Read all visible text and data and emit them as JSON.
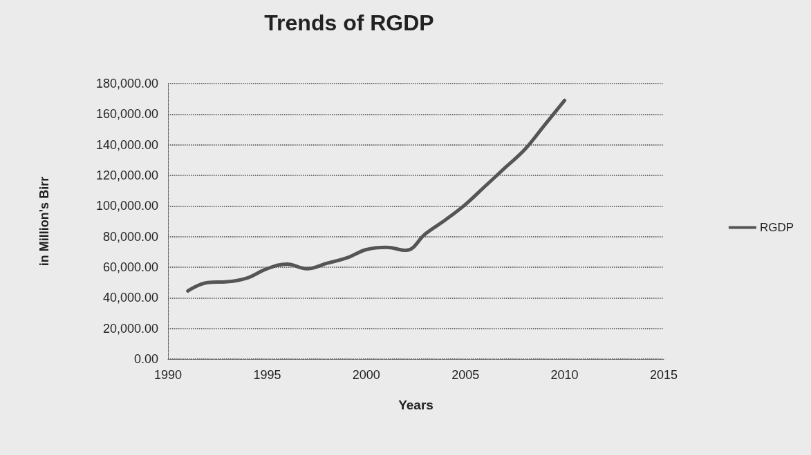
{
  "chart_data": {
    "type": "line",
    "title": "Trends of RGDP",
    "xlabel": "Years",
    "ylabel": "in Million's Birr",
    "x": [
      1991,
      1992,
      1993,
      1994,
      1995,
      1996,
      1997,
      1998,
      1999,
      2000,
      2001,
      2002,
      2003,
      2004,
      2005,
      2006,
      2007,
      2008,
      2009,
      2010
    ],
    "series": [
      {
        "name": "RGDP",
        "color": "#555555",
        "values": [
          44500,
          50000,
          50500,
          53000,
          59000,
          62000,
          59000,
          62500,
          66000,
          71500,
          73000,
          71000,
          82000,
          91000,
          101000,
          113000,
          125000,
          137000,
          153000,
          169000
        ]
      }
    ],
    "xlim": [
      1990,
      2015
    ],
    "xticks": [
      1990,
      1995,
      2000,
      2005,
      2010,
      2015
    ],
    "ylim": [
      0,
      180000
    ],
    "yticks": [
      {
        "value": 0,
        "label": "0.00"
      },
      {
        "value": 20000,
        "label": "20,000.00"
      },
      {
        "value": 40000,
        "label": "40,000.00"
      },
      {
        "value": 60000,
        "label": "60,000.00"
      },
      {
        "value": 80000,
        "label": "80,000.00"
      },
      {
        "value": 100000,
        "label": "100,000.00"
      },
      {
        "value": 120000,
        "label": "120,000.00"
      },
      {
        "value": 140000,
        "label": "140,000.00"
      },
      {
        "value": 160000,
        "label": "160,000.00"
      },
      {
        "value": 180000,
        "label": "180,000.00"
      }
    ],
    "grid": "y",
    "legend": "right",
    "marker": "none",
    "line_style": "solid"
  }
}
